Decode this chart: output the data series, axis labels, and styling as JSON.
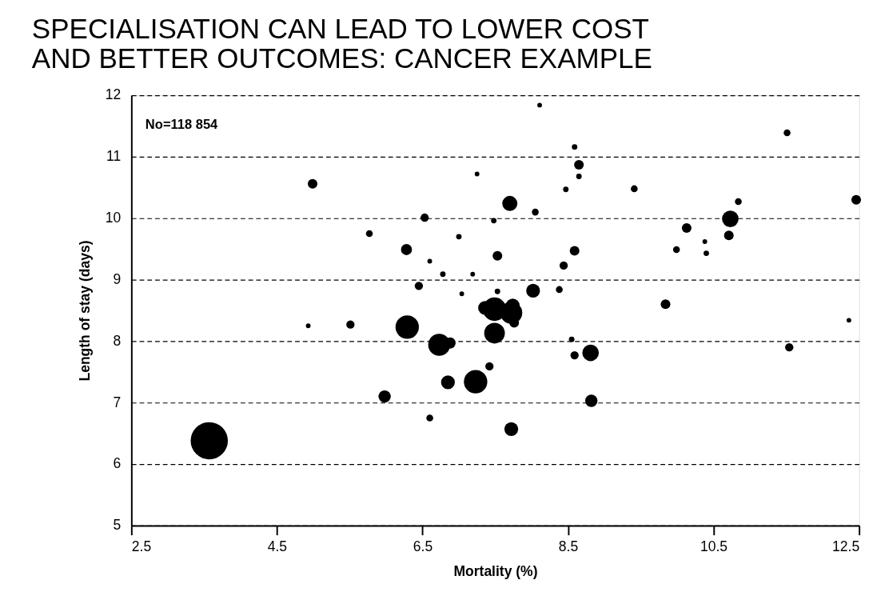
{
  "chart_data": {
    "type": "bubble",
    "title": "SPECIALISATION CAN LEAD TO LOWER COST AND BETTER OUTCOMES: CANCER EXAMPLE",
    "xlabel": "Mortality (%)",
    "ylabel": "Length of stay (days)",
    "annotations": [
      "No=118 854"
    ],
    "x": [
      4.99,
      3.57,
      4.93,
      5.51,
      5.77,
      5.98,
      6.28,
      6.53,
      6.45,
      6.6,
      6.29,
      6.73,
      6.88,
      6.6,
      6.85,
      6.78,
      7.0,
      7.04,
      7.19,
      7.23,
      7.25,
      7.36,
      7.49,
      7.72,
      7.74,
      7.76,
      7.49,
      7.42,
      7.48,
      7.53,
      7.53,
      7.7,
      7.72,
      8.02,
      8.05,
      8.11,
      8.38,
      8.44,
      8.47,
      8.59,
      8.59,
      8.65,
      8.65,
      8.55,
      8.59,
      8.81,
      8.82,
      9.84,
      9.41,
      9.99,
      10.13,
      10.38,
      10.4,
      10.73,
      10.71,
      10.84,
      11.51,
      12.46,
      12.36,
      11.54
    ],
    "values": [
      10.56,
      6.38,
      8.25,
      8.27,
      9.75,
      7.1,
      9.49,
      10.01,
      8.9,
      9.3,
      8.23,
      7.94,
      7.97,
      6.75,
      7.33,
      9.09,
      9.7,
      8.77,
      9.09,
      7.34,
      10.72,
      8.54,
      8.52,
      8.46,
      8.58,
      8.3,
      8.13,
      7.59,
      9.96,
      9.39,
      8.81,
      10.24,
      6.57,
      8.82,
      10.1,
      11.84,
      8.84,
      9.23,
      10.47,
      9.47,
      11.16,
      10.87,
      10.68,
      8.03,
      7.77,
      7.81,
      7.03,
      8.6,
      10.48,
      9.49,
      9.84,
      9.62,
      9.43,
      9.99,
      9.72,
      10.27,
      11.39,
      10.3,
      8.34,
      7.9
    ],
    "sizes": [
      0.067,
      1,
      0.016,
      0.049,
      0.034,
      0.11,
      0.088,
      0.049,
      0.049,
      0.016,
      0.396,
      0.351,
      0.088,
      0.034,
      0.137,
      0.022,
      0.022,
      0.016,
      0.016,
      0.396,
      0.016,
      0.137,
      0.396,
      0.351,
      0.137,
      0.067,
      0.309,
      0.049,
      0.022,
      0.067,
      0.022,
      0.166,
      0.137,
      0.137,
      0.034,
      0.016,
      0.034,
      0.049,
      0.022,
      0.067,
      0.022,
      0.067,
      0.022,
      0.022,
      0.049,
      0.198,
      0.11,
      0.067,
      0.034,
      0.034,
      0.067,
      0.016,
      0.022,
      0.198,
      0.067,
      0.034,
      0.034,
      0.067,
      0.016,
      0.049
    ],
    "color": "#000000",
    "xlim": [
      2.5,
      12.5
    ],
    "xticks": [
      2.5,
      4.5,
      6.5,
      8.5,
      10.5,
      12.5
    ],
    "ylim": [
      5,
      12
    ],
    "yticks": [
      5,
      6,
      7,
      8,
      9,
      10,
      11,
      12
    ],
    "grid": "y",
    "line_style": "dashed",
    "legend": false
  }
}
